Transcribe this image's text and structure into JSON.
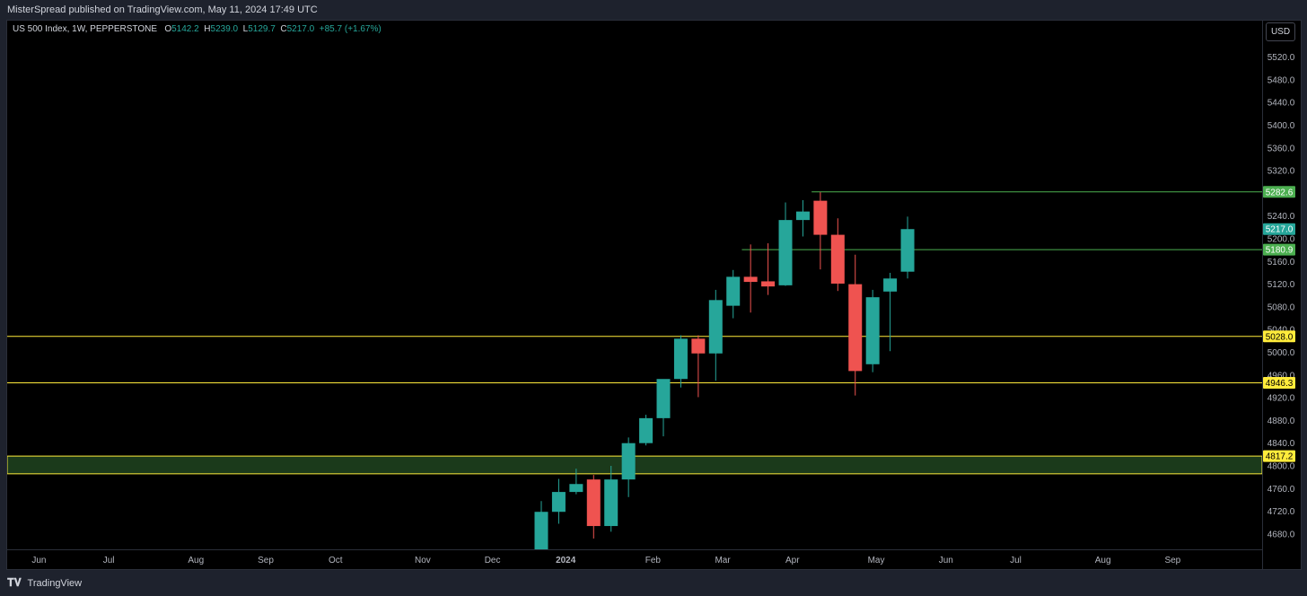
{
  "header": {
    "published": "MisterSpread published on TradingView.com, May 11, 2024 17:49 UTC"
  },
  "symbol": {
    "name": "US 500 Index, 1W, PEPPERSTONE",
    "open_label": "O",
    "open": "5142.2",
    "high_label": "H",
    "high": "5239.0",
    "low_label": "L",
    "low": "5129.7",
    "close_label": "C",
    "close": "5217.0",
    "change": "+85.7 (+1.67%)"
  },
  "currency": "USD",
  "footer": {
    "logo_text": "TradingView"
  },
  "colors": {
    "up": "#26a69a",
    "down": "#ef5350",
    "green_line": "#4caf50",
    "yellow_line": "#ffeb3b",
    "zone_fill": "#1b3a1b"
  },
  "chart_data": {
    "type": "candlestick",
    "y_ticks": [
      "5520.0",
      "5480.0",
      "5440.0",
      "5400.0",
      "5360.0",
      "5320.0",
      "5240.0",
      "5200.0",
      "5160.0",
      "5120.0",
      "5080.0",
      "5040.0",
      "5000.0",
      "4960.0",
      "4920.0",
      "4880.0",
      "4840.0",
      "4800.0",
      "4760.0",
      "4720.0",
      "4680.0"
    ],
    "x_ticks": [
      {
        "label": "Jun",
        "week": -28.8
      },
      {
        "label": "Jul",
        "week": -24.8
      },
      {
        "label": "Aug",
        "week": -19.8
      },
      {
        "label": "Sep",
        "week": -15.8
      },
      {
        "label": "Oct",
        "week": -11.8
      },
      {
        "label": "Nov",
        "week": -6.8
      },
      {
        "label": "Dec",
        "week": -2.8
      },
      {
        "label": "2024",
        "week": 1.4
      },
      {
        "label": "Feb",
        "week": 6.4
      },
      {
        "label": "Mar",
        "week": 10.4
      },
      {
        "label": "Apr",
        "week": 14.4
      },
      {
        "label": "May",
        "week": 19.2
      },
      {
        "label": "Jun",
        "week": 23.2
      },
      {
        "label": "Jul",
        "week": 27.2
      },
      {
        "label": "Aug",
        "week": 32.2
      },
      {
        "label": "Sep",
        "week": 36.2
      }
    ],
    "candles": [
      {
        "o": 4595,
        "h": 4738,
        "l": 4575,
        "c": 4719
      },
      {
        "o": 4719,
        "h": 4777,
        "l": 4698,
        "c": 4754
      },
      {
        "o": 4754,
        "h": 4795,
        "l": 4750,
        "c": 4768
      },
      {
        "o": 4776,
        "h": 4784,
        "l": 4672,
        "c": 4694
      },
      {
        "o": 4694,
        "h": 4800,
        "l": 4684,
        "c": 4776
      },
      {
        "o": 4776,
        "h": 4850,
        "l": 4745,
        "c": 4840
      },
      {
        "o": 4840,
        "h": 4890,
        "l": 4836,
        "c": 4884
      },
      {
        "o": 4884,
        "h": 4950,
        "l": 4852,
        "c": 4953
      },
      {
        "o": 4953,
        "h": 5030,
        "l": 4938,
        "c": 5024
      },
      {
        "o": 5024,
        "h": 5030,
        "l": 4921,
        "c": 4998
      },
      {
        "o": 4998,
        "h": 5110,
        "l": 4950,
        "c": 5092
      },
      {
        "o": 5082,
        "h": 5145,
        "l": 5060,
        "c": 5133
      },
      {
        "o": 5133,
        "h": 5190,
        "l": 5070,
        "c": 5124
      },
      {
        "o": 5125,
        "h": 5192,
        "l": 5101,
        "c": 5116
      },
      {
        "o": 5118,
        "h": 5264,
        "l": 5117,
        "c": 5233
      },
      {
        "o": 5233,
        "h": 5268,
        "l": 5204,
        "c": 5248
      },
      {
        "o": 5267,
        "h": 5282,
        "l": 5146,
        "c": 5207
      },
      {
        "o": 5207,
        "h": 5236,
        "l": 5108,
        "c": 5121
      },
      {
        "o": 5120,
        "h": 5172,
        "l": 4924,
        "c": 4967
      },
      {
        "o": 4979,
        "h": 5110,
        "l": 4965,
        "c": 5097
      },
      {
        "o": 5107,
        "h": 5140,
        "l": 5002,
        "c": 5130
      },
      {
        "o": 5142,
        "h": 5239,
        "l": 5130,
        "c": 5217
      }
    ],
    "first_candle_week": 0,
    "levels": [
      {
        "label": "5282.6",
        "value": 5282.6,
        "color": "green",
        "start_week": 16
      },
      {
        "label": "5180.9",
        "value": 5180.9,
        "color": "green",
        "start_week": 12
      },
      {
        "label": "5028.0",
        "value": 5028.0,
        "color": "yellow",
        "start_week": -40
      },
      {
        "label": "4946.3",
        "value": 4946.3,
        "color": "yellow",
        "start_week": -40
      }
    ],
    "zone": {
      "label": "4817.2",
      "top": 4817.2,
      "bottom": 4786,
      "start_week": -40
    },
    "last_price": {
      "label": "5217.0",
      "value": 5217.0
    }
  }
}
